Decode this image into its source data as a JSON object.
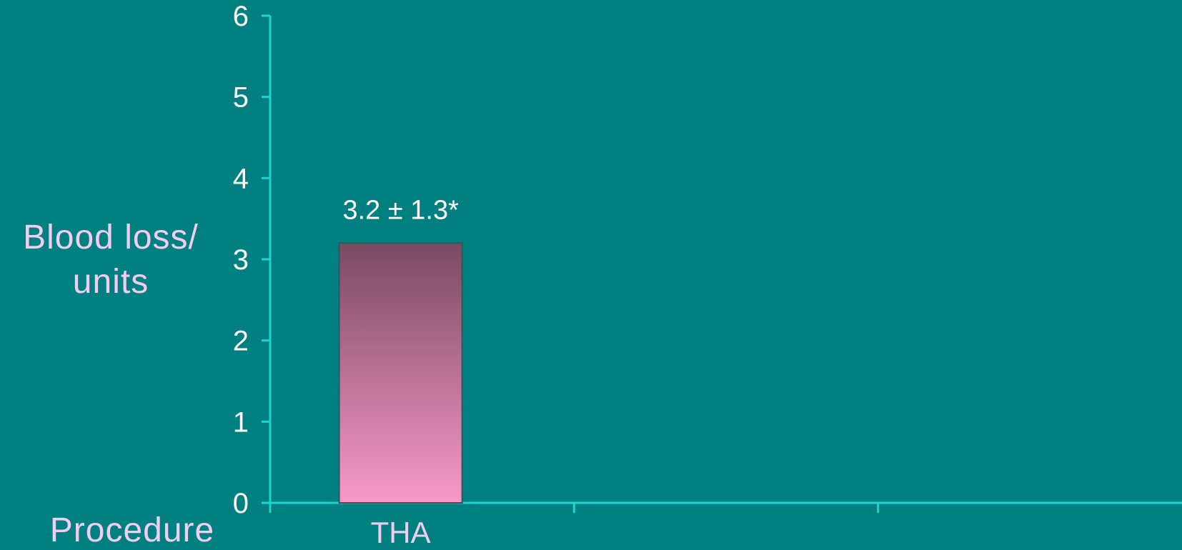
{
  "chart_data": {
    "type": "bar",
    "categories": [
      "THA",
      "",
      ""
    ],
    "values": [
      3.2,
      null,
      null
    ],
    "value_labels": [
      "3.2 ± 1.3*",
      "",
      ""
    ],
    "ylabel": [
      "Blood loss/",
      "units"
    ],
    "xlabel": "Procedure",
    "ylim": [
      0,
      6
    ],
    "yticks": [
      0,
      1,
      2,
      3,
      4,
      5,
      6
    ],
    "grid": false,
    "legend": "none"
  },
  "colors": {
    "background": "#008080",
    "axis": "#1fd3cf",
    "bar_top": "#7a4a63",
    "bar_bottom": "#f899c8",
    "tick_text": "#ffffff",
    "title_text": "#f2cdf0"
  }
}
